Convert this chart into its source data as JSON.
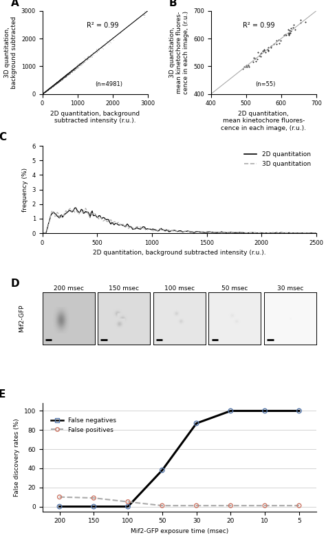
{
  "panel_A": {
    "label": "A",
    "scatter_n": 4981,
    "r2": "0.99",
    "xlim": [
      0,
      3000
    ],
    "ylim": [
      0,
      3000
    ],
    "xticks": [
      0,
      1000,
      2000,
      3000
    ],
    "yticks": [
      0,
      1000,
      2000,
      3000
    ],
    "xlabel": "2D quantitation, background\nsubtracted intensity (r.u.).",
    "ylabel": "3D quantitation,\nbackground subtracted"
  },
  "panel_B": {
    "label": "B",
    "scatter_n": 55,
    "r2": "0.99",
    "xlim": [
      400,
      700
    ],
    "ylim": [
      400,
      700
    ],
    "xticks": [
      400,
      500,
      600,
      700
    ],
    "yticks": [
      400,
      500,
      600,
      700
    ],
    "xlabel": "2D quantitation,\nmean kinetochore fluores-\ncence in each image, (r.u.).",
    "ylabel": "3D quantitation,\nmean kinetochore fluores-\ncence in each image, (r.u.)"
  },
  "panel_C": {
    "label": "C",
    "xlim": [
      0,
      2500
    ],
    "ylim": [
      0,
      6
    ],
    "xticks": [
      0,
      500,
      1000,
      1500,
      2000,
      2500
    ],
    "yticks": [
      0,
      1,
      2,
      3,
      4,
      5,
      6
    ],
    "xlabel": "2D quantitation, background subtracted intensity (r.u.).",
    "ylabel": "frequency (%)"
  },
  "panel_D": {
    "label": "D",
    "ylabel": "Mif2-GFP",
    "exposure_times": [
      "200 msec",
      "150 msec",
      "100 msec",
      "50 msec",
      "30 msec"
    ],
    "bg_gray": [
      0.78,
      0.86,
      0.9,
      0.93,
      0.97
    ],
    "spot_strength": [
      0.25,
      0.12,
      0.08,
      0.04,
      0.01
    ]
  },
  "panel_E": {
    "label": "E",
    "xlabel": "Mif2-GFP exposure time (msec)",
    "ylabel": "False discovery rates (%)",
    "xlim_vals": [
      200,
      150,
      100,
      50,
      30,
      20,
      10,
      5
    ],
    "false_neg": [
      0,
      0,
      0,
      38,
      87,
      100,
      100,
      100
    ],
    "false_pos": [
      10,
      9,
      5,
      1,
      1,
      1,
      1,
      1
    ],
    "yticks": [
      0,
      20,
      40,
      60,
      80,
      100
    ],
    "ylim": [
      -5,
      108
    ],
    "legend_neg": "False negatives",
    "legend_pos": "False positives"
  },
  "bg_color": "#ffffff"
}
